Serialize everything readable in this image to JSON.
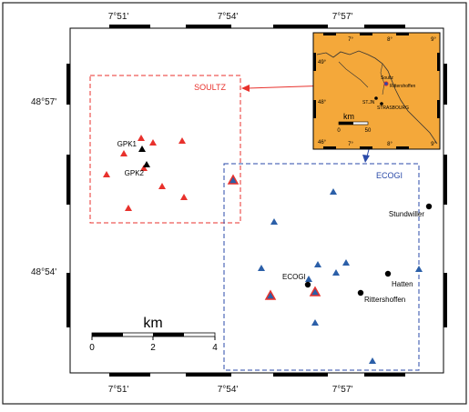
{
  "map": {
    "top_ticks": [
      "7°51'",
      "7°54'",
      "7°57'"
    ],
    "bottom_ticks": [
      "7°51'",
      "7°54'",
      "7°57'"
    ],
    "left_ticks": [
      "48°57'",
      "48°54'"
    ]
  },
  "regions": {
    "soultz": {
      "label": "SOULTZ",
      "color": "#e8312c"
    },
    "ecogi": {
      "label": "ECOGI",
      "color": "#2a4aa8"
    }
  },
  "wells": {
    "gpk1": "GPK1",
    "gpk2": "GPK2",
    "ecogi": "ECOGI"
  },
  "towns": [
    "Stundwiller",
    "Hatten",
    "Rittershoffen"
  ],
  "scale_bar": {
    "title": "km",
    "ticks": [
      "0",
      "2",
      "4"
    ]
  },
  "inset": {
    "background": "#f4a83a",
    "lon_ticks": [
      "7°",
      "8°",
      "9°"
    ],
    "lat_ticks": [
      "49°",
      "48°",
      "46°"
    ],
    "labels": {
      "soultz": "Soultz",
      "rittershoffen": "Rittershoffen",
      "stjn": "ST.JN",
      "strasbourg": "STRASBOURG"
    },
    "scale_title": "km",
    "scale_ticks": [
      "0",
      "50"
    ]
  },
  "colors": {
    "red_station": "#e8312c",
    "blue_station": "#2b5fa8"
  }
}
